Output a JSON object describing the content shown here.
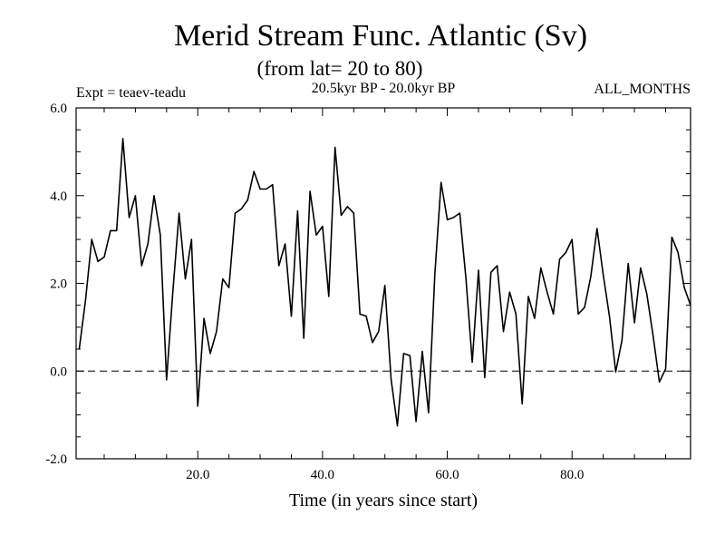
{
  "chart_data": {
    "type": "line",
    "title": "Merid Stream Func. Atlantic (Sv)",
    "subtitle": "(from lat= 20 to 80)",
    "left_note": "Expt = teaev-teadu",
    "center_note": "20.5kyr BP - 20.0kyr BP",
    "right_note": "ALL_MONTHS",
    "xlabel": "Time (in years since start)",
    "ylabel": "",
    "xlim": [
      0.5,
      99.0
    ],
    "ylim": [
      -2.0,
      6.0
    ],
    "x_ticks": [
      20.0,
      40.0,
      60.0,
      80.0
    ],
    "x_tick_labels": [
      "20.0",
      "40.0",
      "60.0",
      "80.0"
    ],
    "y_ticks": [
      -2.0,
      0.0,
      2.0,
      4.0,
      6.0
    ],
    "y_tick_labels": [
      "-2.0",
      "0.0",
      "2.0",
      "4.0",
      "6.0"
    ],
    "reference_line": 0.0,
    "series": [
      {
        "name": "Merid Stream Func.",
        "x": [
          1,
          2,
          3,
          4,
          5,
          6,
          7,
          8,
          9,
          10,
          11,
          12,
          13,
          14,
          15,
          16,
          17,
          18,
          19,
          20,
          21,
          22,
          23,
          24,
          25,
          26,
          27,
          28,
          29,
          30,
          31,
          32,
          33,
          34,
          35,
          36,
          37,
          38,
          39,
          40,
          41,
          42,
          43,
          44,
          45,
          46,
          47,
          48,
          49,
          50,
          51,
          52,
          53,
          54,
          55,
          56,
          57,
          58,
          59,
          60,
          61,
          62,
          63,
          64,
          65,
          66,
          67,
          68,
          69,
          70,
          71,
          72,
          73,
          74,
          75,
          76,
          77,
          78,
          79,
          80,
          81,
          82,
          83,
          84,
          85,
          86,
          87,
          88,
          89,
          90,
          91,
          92,
          93,
          94,
          95,
          96,
          97,
          98,
          99
        ],
        "values": [
          0.5,
          1.6,
          3.0,
          2.5,
          2.6,
          3.2,
          3.2,
          5.3,
          3.5,
          4.0,
          2.4,
          2.9,
          4.0,
          3.1,
          -0.2,
          1.8,
          3.6,
          2.1,
          3.0,
          -0.8,
          1.2,
          0.4,
          0.9,
          2.1,
          1.9,
          3.6,
          3.7,
          3.9,
          4.55,
          4.15,
          4.15,
          4.25,
          2.4,
          2.9,
          1.25,
          3.65,
          0.75,
          4.1,
          3.1,
          3.3,
          1.7,
          5.1,
          3.55,
          3.75,
          3.6,
          1.3,
          1.25,
          0.65,
          0.9,
          1.95,
          -0.2,
          -1.25,
          0.4,
          0.35,
          -1.15,
          0.45,
          -0.95,
          2.2,
          4.3,
          3.45,
          3.5,
          3.6,
          2.1,
          0.2,
          2.3,
          -0.15,
          2.25,
          2.4,
          0.9,
          1.8,
          1.3,
          -0.75,
          1.7,
          1.2,
          2.35,
          1.8,
          1.3,
          2.55,
          2.7,
          3.0,
          1.3,
          1.45,
          2.15,
          3.25,
          2.2,
          1.25,
          -0.02,
          0.7,
          2.45,
          1.1,
          2.35,
          1.75,
          0.8,
          -0.25,
          0.05,
          3.05,
          2.7,
          1.9,
          1.5
        ]
      }
    ]
  }
}
